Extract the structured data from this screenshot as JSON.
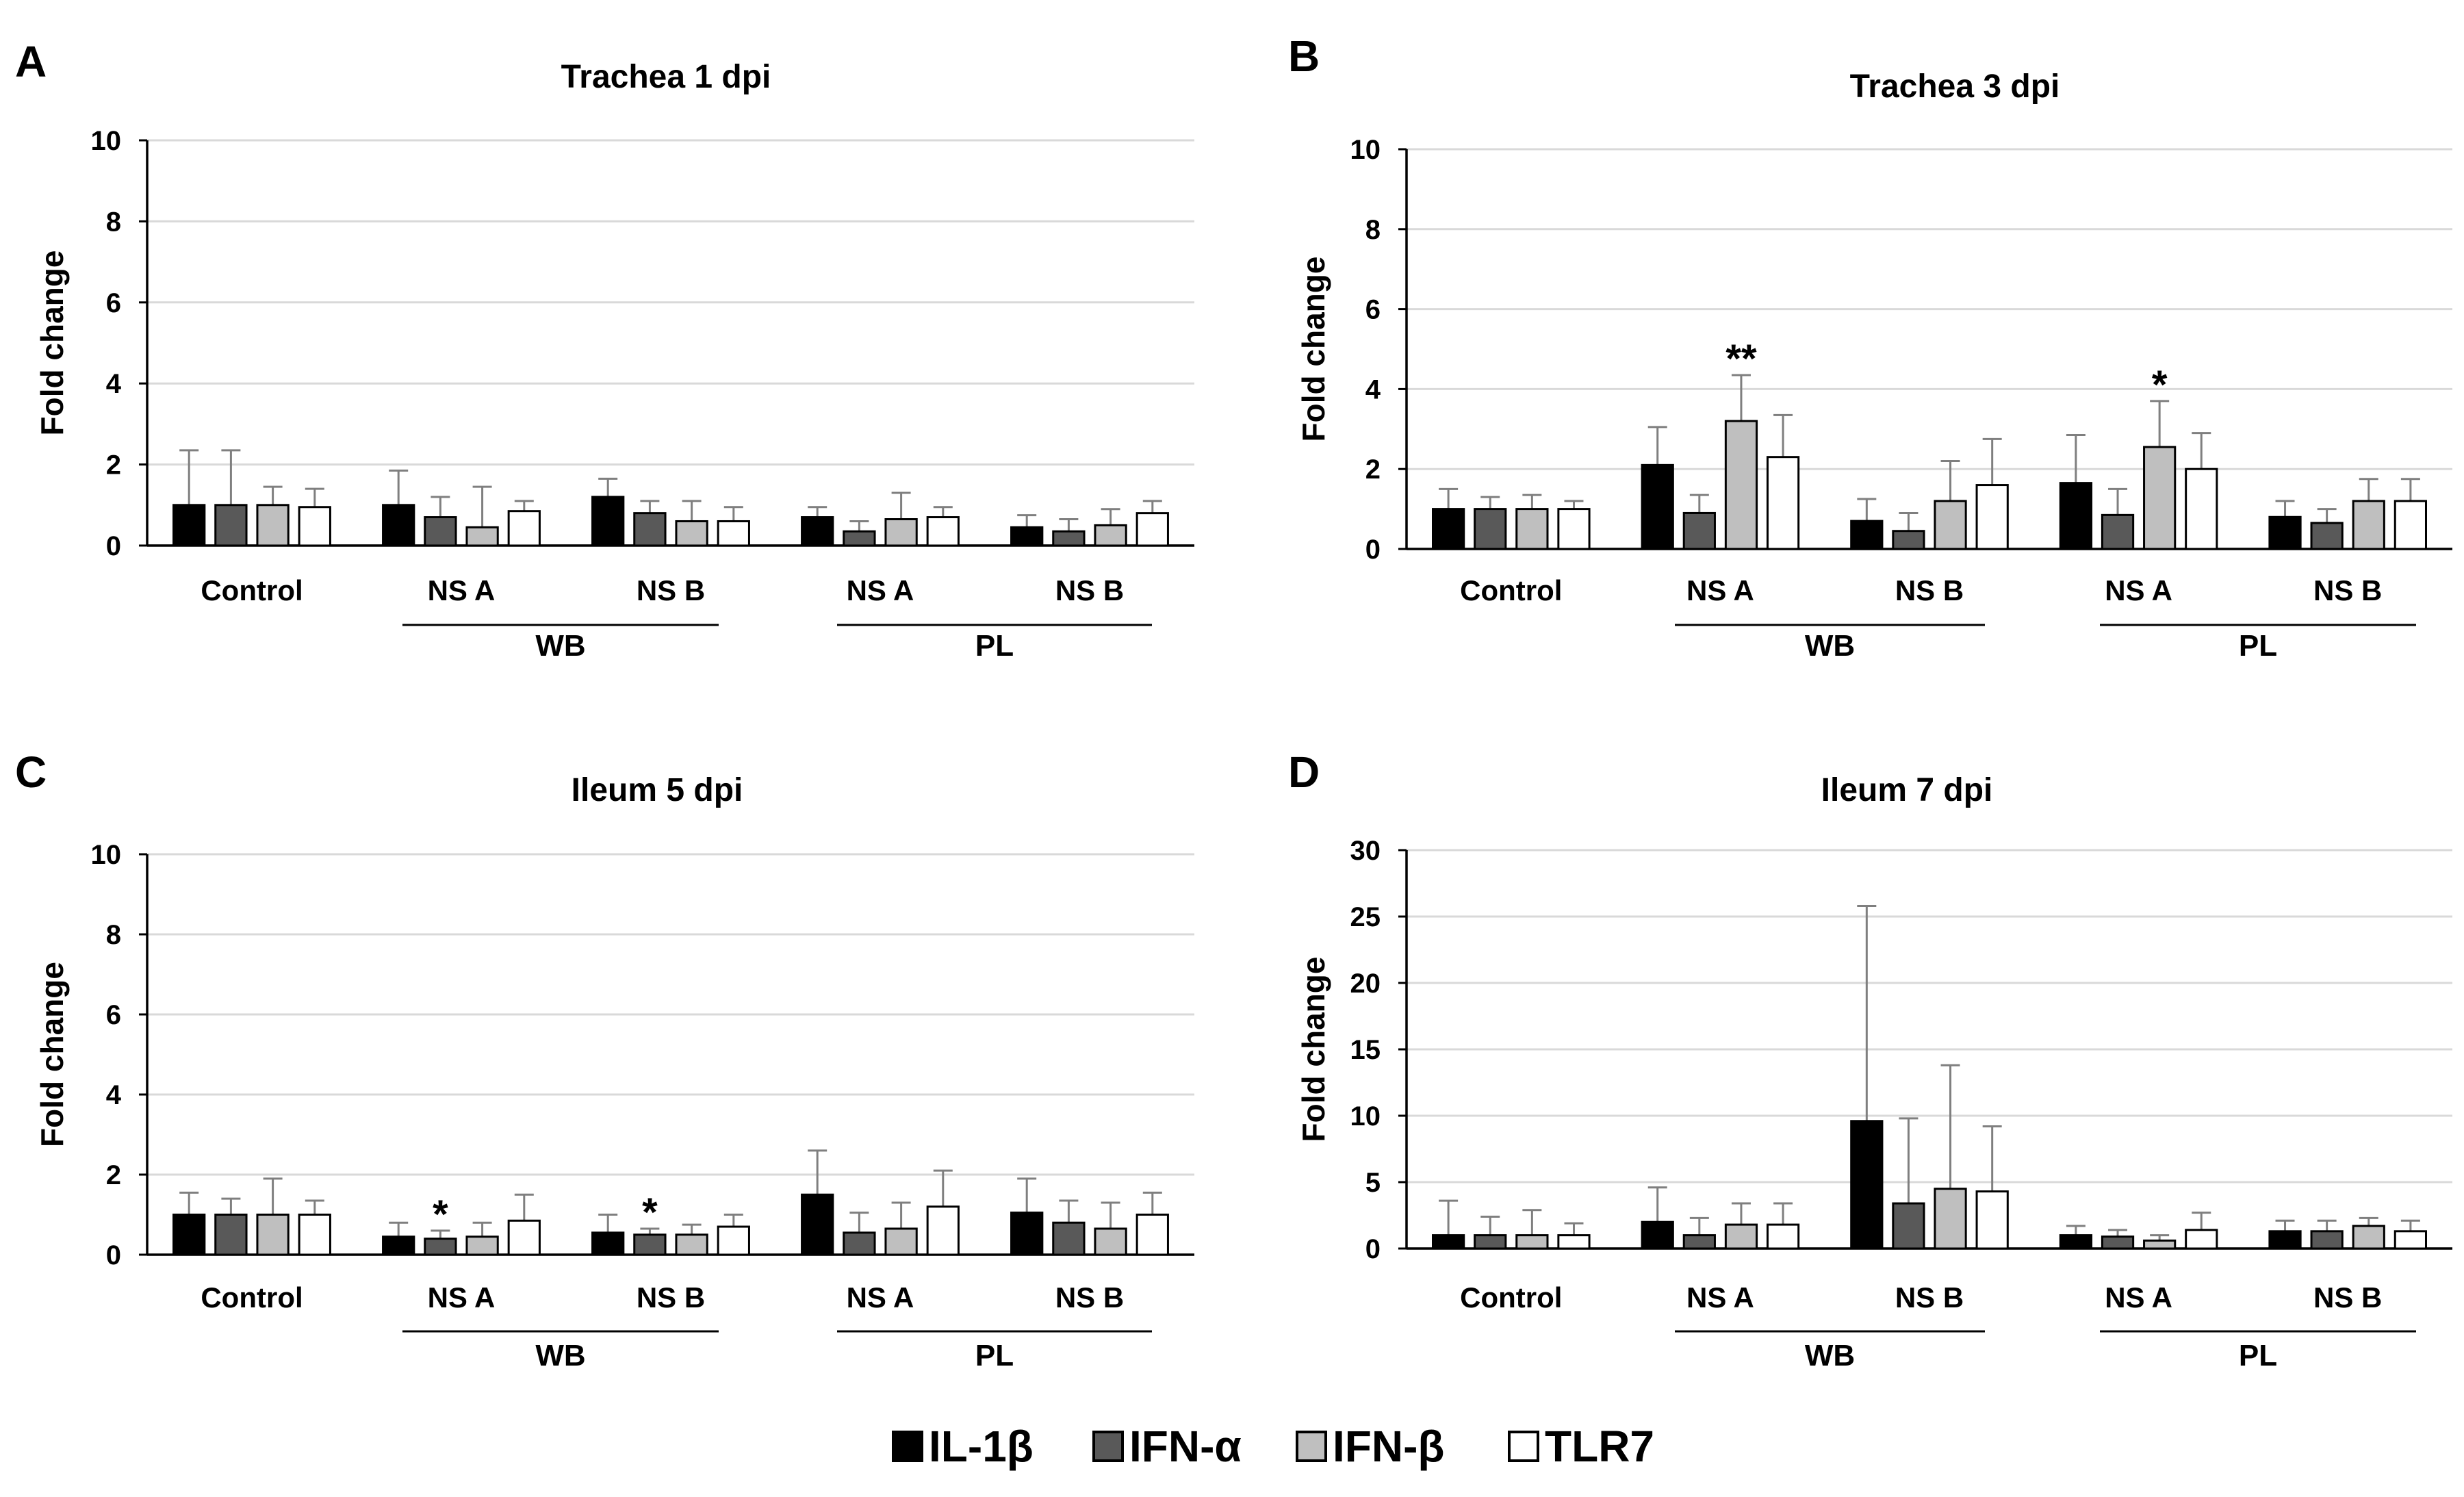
{
  "chart_data": [
    {
      "panel": "A",
      "type": "bar",
      "title": "Trachea 1 dpi",
      "ylabel": "Fold change",
      "ylim": [
        0,
        10
      ],
      "yticks": [
        0,
        2,
        4,
        6,
        8,
        10
      ],
      "categories": [
        "Control",
        "NS A",
        "NS B",
        "NS A",
        "NS B"
      ],
      "groups": [
        {
          "label": "WB",
          "categories": [
            1,
            2
          ]
        },
        {
          "label": "PL",
          "categories": [
            3,
            4
          ]
        }
      ],
      "series": [
        {
          "name": "IL-1β",
          "values": [
            1.0,
            1.0,
            1.2,
            0.7,
            0.45
          ],
          "errors": [
            1.35,
            0.85,
            0.45,
            0.25,
            0.3
          ]
        },
        {
          "name": "IFN-α",
          "values": [
            1.0,
            0.7,
            0.8,
            0.35,
            0.35
          ],
          "errors": [
            1.35,
            0.5,
            0.3,
            0.25,
            0.3
          ]
        },
        {
          "name": "IFN-β",
          "values": [
            1.0,
            0.45,
            0.6,
            0.65,
            0.5
          ],
          "errors": [
            0.45,
            1.0,
            0.5,
            0.65,
            0.4
          ]
        },
        {
          "name": "TLR7",
          "values": [
            0.95,
            0.85,
            0.6,
            0.7,
            0.8
          ],
          "errors": [
            0.45,
            0.25,
            0.35,
            0.25,
            0.3
          ]
        }
      ],
      "annotations": []
    },
    {
      "panel": "B",
      "type": "bar",
      "title": "Trachea 3 dpi",
      "ylabel": "Fold change",
      "ylim": [
        0,
        10
      ],
      "yticks": [
        0,
        2,
        4,
        6,
        8,
        10
      ],
      "categories": [
        "Control",
        "NS A",
        "NS B",
        "NS A",
        "NS B"
      ],
      "groups": [
        {
          "label": "WB",
          "categories": [
            1,
            2
          ]
        },
        {
          "label": "PL",
          "categories": [
            3,
            4
          ]
        }
      ],
      "series": [
        {
          "name": "IL-1β",
          "values": [
            1.0,
            2.1,
            0.7,
            1.65,
            0.8
          ],
          "errors": [
            0.5,
            0.95,
            0.55,
            1.2,
            0.4
          ]
        },
        {
          "name": "IFN-α",
          "values": [
            1.0,
            0.9,
            0.45,
            0.85,
            0.65
          ],
          "errors": [
            0.3,
            0.45,
            0.45,
            0.65,
            0.35
          ]
        },
        {
          "name": "IFN-β",
          "values": [
            1.0,
            3.2,
            1.2,
            2.55,
            1.2
          ],
          "errors": [
            0.35,
            1.15,
            1.0,
            1.15,
            0.55
          ]
        },
        {
          "name": "TLR7",
          "values": [
            1.0,
            2.3,
            1.6,
            2.0,
            1.2
          ],
          "errors": [
            0.2,
            1.05,
            1.15,
            0.9,
            0.55
          ]
        }
      ],
      "annotations": [
        {
          "text": "**",
          "category": 1,
          "series": 2
        },
        {
          "text": "*",
          "category": 3,
          "series": 2
        }
      ]
    },
    {
      "panel": "C",
      "type": "bar",
      "title": "Ileum 5 dpi",
      "ylabel": "Fold change",
      "ylim": [
        0,
        10
      ],
      "yticks": [
        0,
        2,
        4,
        6,
        8,
        10
      ],
      "categories": [
        "Control",
        "NS A",
        "NS B",
        "NS A",
        "NS B"
      ],
      "groups": [
        {
          "label": "WB",
          "categories": [
            1,
            2
          ]
        },
        {
          "label": "PL",
          "categories": [
            3,
            4
          ]
        }
      ],
      "series": [
        {
          "name": "IL-1β",
          "values": [
            1.0,
            0.45,
            0.55,
            1.5,
            1.05
          ],
          "errors": [
            0.55,
            0.35,
            0.45,
            1.1,
            0.85
          ]
        },
        {
          "name": "IFN-α",
          "values": [
            1.0,
            0.4,
            0.5,
            0.55,
            0.8
          ],
          "errors": [
            0.4,
            0.2,
            0.15,
            0.5,
            0.55
          ]
        },
        {
          "name": "IFN-β",
          "values": [
            1.0,
            0.45,
            0.5,
            0.65,
            0.65
          ],
          "errors": [
            0.9,
            0.35,
            0.25,
            0.65,
            0.65
          ]
        },
        {
          "name": "TLR7",
          "values": [
            1.0,
            0.85,
            0.7,
            1.2,
            1.0
          ],
          "errors": [
            0.35,
            0.65,
            0.3,
            0.9,
            0.55
          ]
        }
      ],
      "annotations": [
        {
          "text": "*",
          "category": 1,
          "series": 1
        },
        {
          "text": "*",
          "category": 2,
          "series": 1
        }
      ]
    },
    {
      "panel": "D",
      "type": "bar",
      "title": "Ileum 7 dpi",
      "ylabel": "Fold change",
      "ylim": [
        0,
        30
      ],
      "yticks": [
        0,
        5,
        10,
        15,
        20,
        25,
        30
      ],
      "categories": [
        "Control",
        "NS A",
        "NS B",
        "NS A",
        "NS B"
      ],
      "groups": [
        {
          "label": "WB",
          "categories": [
            1,
            2
          ]
        },
        {
          "label": "PL",
          "categories": [
            3,
            4
          ]
        }
      ],
      "series": [
        {
          "name": "IL-1β",
          "values": [
            1.0,
            2.0,
            9.6,
            1.0,
            1.3
          ],
          "errors": [
            2.6,
            2.6,
            16.2,
            0.7,
            0.8
          ]
        },
        {
          "name": "IFN-α",
          "values": [
            1.0,
            1.0,
            3.4,
            0.9,
            1.3
          ],
          "errors": [
            1.4,
            1.3,
            6.4,
            0.5,
            0.8
          ]
        },
        {
          "name": "IFN-β",
          "values": [
            1.0,
            1.8,
            4.5,
            0.6,
            1.7
          ],
          "errors": [
            1.9,
            1.6,
            9.3,
            0.4,
            0.6
          ]
        },
        {
          "name": "TLR7",
          "values": [
            1.0,
            1.8,
            4.3,
            1.4,
            1.3
          ],
          "errors": [
            0.9,
            1.6,
            4.9,
            1.3,
            0.8
          ]
        }
      ],
      "annotations": []
    }
  ],
  "legend": [
    {
      "name": "IL-1β",
      "color": "#000000"
    },
    {
      "name": "IFN-α",
      "color": "#595959"
    },
    {
      "name": "IFN-β",
      "color": "#bfbfbf"
    },
    {
      "name": "TLR7",
      "color": "#ffffff"
    }
  ],
  "colors": {
    "axis": "#000000",
    "grid": "#d9d9d9",
    "errorbar": "#7f7f7f",
    "bar_outline": "#000000"
  }
}
